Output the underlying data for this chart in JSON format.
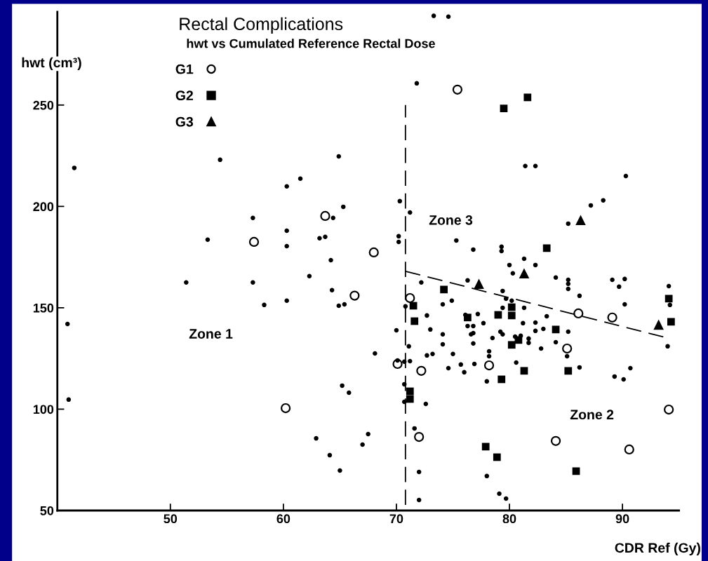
{
  "chart_data": {
    "type": "scatter",
    "title": "Rectal Complications",
    "subtitle": "hwt vs Cumulated Reference Rectal Dose",
    "xlabel": "CDR Ref (Gy)",
    "ylabel": "hwt (cm³)",
    "xlim": [
      40,
      95
    ],
    "ylim": [
      50,
      296
    ],
    "xticks": [
      50,
      60,
      70,
      80,
      90
    ],
    "yticks": [
      50,
      100,
      150,
      200,
      250
    ],
    "grid": false,
    "legend": "top left",
    "annotations": [
      "Zone 1",
      "Zone 2",
      "Zone 3"
    ],
    "series": [
      {
        "color": "#000000",
        "marker": "circle",
        "x": [
          41.5,
          54.4,
          53.3,
          51.4,
          73.3,
          74.6,
          71.8,
          64.9,
          61.5,
          60.3,
          70.3,
          65.3,
          71.2,
          64.4,
          57.3,
          60.3,
          63.2,
          63.7,
          70.2,
          70.2,
          60.3,
          75.3,
          64.2,
          62.3,
          57.3,
          64.3,
          72.2,
          76.3,
          81.4,
          82.3,
          90.3,
          88.3,
          87.2,
          85.2,
          76.8,
          79.3,
          79.3,
          81.3,
          80.0,
          82.3,
          80.3,
          84.1,
          85.2,
          85.2,
          85.2,
          89.1,
          90.2,
          89.7,
          94.1,
          79.4,
          86.2,
          94.2,
          90.2,
          79.7,
          80.2,
          79.4,
          81.3,
          83.3,
          77.2,
          77.7,
          81.2,
          82.3,
          76.3,
          76.8,
          82.3,
          83.0,
          85.2,
          79.2,
          79.4,
          76.8,
          76.6,
          80.5,
          81.0,
          78.5,
          81.7,
          81.7,
          76.8,
          84.1,
          82.8,
          94.0,
          78.2,
          78.2,
          85.1,
          80.6,
          76.9,
          76.0,
          86.2,
          90.7,
          89.3,
          90.1,
          78.0,
          78.0,
          79.1,
          79.7,
          58.3,
          60.3,
          64.9,
          65.4,
          70.8,
          74.1,
          74.9,
          72.7,
          76.1,
          70.0,
          73.0,
          74.1,
          74.1,
          71.1,
          68.1,
          72.7,
          73.2,
          75.0,
          70.7,
          71.2,
          70.1,
          74.6,
          75.7,
          70.7,
          70.7,
          72.6,
          65.2,
          65.8,
          71.6,
          67.5,
          62.9,
          67.0,
          64.1,
          65.0,
          72.0,
          72.0,
          40.9,
          41.0
        ],
        "values": [
          219,
          223,
          183.6,
          162.5,
          294,
          293.6,
          260.7,
          224.7,
          213.7,
          209.9,
          202.6,
          199.8,
          197,
          194.3,
          194.3,
          188,
          184.3,
          185,
          185.3,
          182.5,
          180.4,
          183.2,
          173.5,
          165.6,
          162.5,
          158.7,
          162.5,
          163.5,
          219.9,
          219.9,
          215,
          203,
          200.5,
          191.5,
          178.7,
          180.1,
          178,
          174.2,
          171.1,
          171.1,
          167,
          164.9,
          163.8,
          161.8,
          159.3,
          163.8,
          164.2,
          160.4,
          160.7,
          158.3,
          155.9,
          151.4,
          151.7,
          154.5,
          153.5,
          150,
          150,
          145.8,
          146.9,
          142.4,
          142.4,
          142.7,
          141,
          141,
          138.6,
          139.6,
          138.2,
          138.2,
          136.9,
          137.5,
          136.9,
          135.8,
          136.2,
          135.1,
          134.8,
          132.7,
          132.4,
          133,
          129.9,
          131,
          128.5,
          126.1,
          126.1,
          123,
          122.3,
          118.2,
          120.6,
          120.2,
          116.1,
          114.7,
          113.7,
          67,
          58.3,
          55.9,
          151.4,
          153.5,
          151,
          151.7,
          150.7,
          151.7,
          153.5,
          146.2,
          146.5,
          138.9,
          139.3,
          136.9,
          132,
          131,
          127.5,
          126.5,
          127.2,
          127.2,
          123.4,
          123.7,
          124,
          120.2,
          122,
          112.3,
          103.6,
          102.6,
          111.6,
          108.1,
          90.5,
          87.7,
          85.6,
          82.5,
          77.3,
          69.7,
          69,
          55.2,
          142,
          104.7
        ]
      },
      {
        "name": "G1",
        "color": "#000000",
        "marker": "circle",
        "x": [
          75.4,
          63.7,
          57.4,
          68.0,
          66.3,
          71.2,
          86.1,
          89.1,
          85.1,
          78.2,
          70.1,
          72.2,
          94.1,
          60.2,
          72.0,
          84.1,
          90.6
        ],
        "values": [
          257.6,
          195.3,
          182.5,
          177.3,
          156,
          154.8,
          147.2,
          145.2,
          129.9,
          121.6,
          122.3,
          118.9,
          99.8,
          100.5,
          86.3,
          84.3,
          80.1
        ]
      },
      {
        "name": "G2",
        "color": "#000000",
        "marker": "square",
        "x": [
          81.6,
          79.5,
          83.3,
          74.2,
          71.5,
          80.2,
          79.0,
          80.2,
          71.6,
          76.3,
          94.1,
          94.3,
          84.1,
          80.8,
          80.2,
          81.3,
          85.2,
          79.3,
          71.2,
          71.2,
          77.9,
          78.9,
          85.9
        ],
        "values": [
          253.8,
          248.3,
          179.4,
          159,
          151,
          150.3,
          146.5,
          146.2,
          143.4,
          145.2,
          154.5,
          143.1,
          139.3,
          134.1,
          131.7,
          118.9,
          118.9,
          114.7,
          108.8,
          105,
          81.5,
          76.3,
          69.4
        ]
      },
      {
        "name": "G3",
        "color": "#000000",
        "marker": "triangle",
        "x": [
          86.3,
          81.3,
          77.3,
          93.2
        ],
        "values": [
          193.3,
          167,
          161.8,
          141.7
        ]
      },
      {
        "type": "line",
        "color": "#000000",
        "line_style": "dashed",
        "x": [
          70.8,
          70.8
        ],
        "values": [
          52.8,
          250
        ]
      },
      {
        "type": "line",
        "color": "#000000",
        "line_style": "dashed",
        "x": [
          70.8,
          93.7
        ],
        "values": [
          168,
          135.5
        ]
      }
    ]
  }
}
